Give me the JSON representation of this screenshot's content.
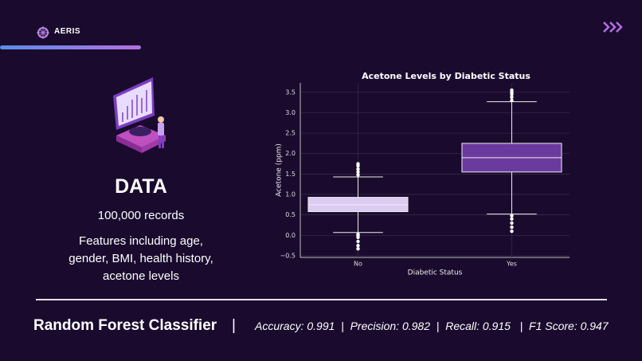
{
  "header": {
    "brand": "AERIS"
  },
  "panel": {
    "heading": "DATA",
    "records": "100,000 records",
    "features": [
      "Features including age,",
      "gender, BMI, health history,",
      "acetone levels"
    ]
  },
  "footer": {
    "model": "Random Forest Classifier",
    "divider": "|",
    "separator": "|",
    "metrics": [
      "Accuracy: 0.991",
      "Precision: 0.982",
      "Recall: 0.915",
      "F1 Score: 0.947"
    ]
  },
  "chart_data": {
    "type": "box",
    "title": "Acetone Levels by Diabetic Status",
    "x_label": "Diabetic Status",
    "y_label": "Acetone (ppm)",
    "categories": [
      "No",
      "Yes"
    ],
    "colors": [
      "#dccbf3",
      "#6b3a9e"
    ],
    "boxes": [
      {
        "whisker_low": 0.07,
        "q1": 0.58,
        "median": 0.75,
        "q3": 0.93,
        "whisker_high": 1.43,
        "outliers": [
          -0.33,
          -0.25,
          -0.15,
          -0.05,
          0.0,
          0.03,
          1.48,
          1.55,
          1.62,
          1.7,
          1.75
        ]
      },
      {
        "whisker_low": 0.52,
        "q1": 1.55,
        "median": 1.9,
        "q3": 2.25,
        "whisker_high": 3.27,
        "outliers": [
          0.1,
          0.2,
          0.3,
          0.4,
          0.48,
          3.3,
          3.38,
          3.45,
          3.5,
          3.55
        ]
      }
    ],
    "ylim": [
      -0.54,
      3.73
    ],
    "yticks": [
      {
        "value": -0.5,
        "label": "−0.5"
      },
      {
        "value": 0,
        "label": "0.0"
      },
      0.5,
      {
        "value": 1,
        "label": "1.0"
      },
      1.5,
      {
        "value": 2,
        "label": "2.0"
      },
      2.5,
      {
        "value": 3,
        "label": "3.0"
      },
      3.5
    ],
    "grid": true
  }
}
